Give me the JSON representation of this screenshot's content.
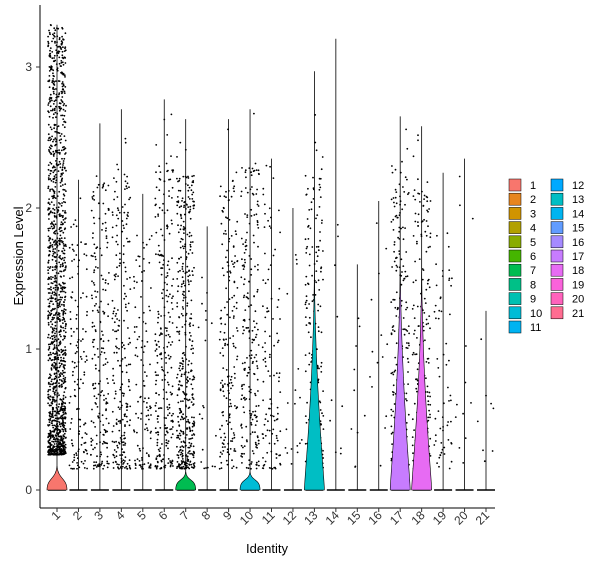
{
  "chart_data": {
    "type": "violin",
    "xlabel": "Identity",
    "ylabel": "Expression Level",
    "ylim": [
      -0.18,
      3.43
    ],
    "y_ticks": [
      0,
      1,
      2,
      3
    ],
    "grid": false,
    "legend_position": "right",
    "categories": [
      "1",
      "2",
      "3",
      "4",
      "5",
      "6",
      "7",
      "8",
      "9",
      "10",
      "11",
      "12",
      "13",
      "14",
      "15",
      "16",
      "17",
      "18",
      "19",
      "20",
      "21"
    ],
    "colors": [
      "#F8766D",
      "#E7851E",
      "#D09400",
      "#B2A100",
      "#89AC00",
      "#45B500",
      "#00BC51",
      "#00C087",
      "#00C0B2",
      "#00BCD6",
      "#00B3F2",
      "#00A9FF",
      "#00BEC4",
      "#00B4F0",
      "#619CFF",
      "#A58AFF",
      "#C77CFF",
      "#E76BF3",
      "#FA62DB",
      "#FF62BC",
      "#FF6C91"
    ],
    "legend_labels": [
      "1",
      "2",
      "3",
      "4",
      "5",
      "6",
      "7",
      "8",
      "9",
      "10",
      "11",
      "12",
      "13",
      "14",
      "15",
      "16",
      "17",
      "18",
      "19",
      "20",
      "21"
    ],
    "max_expression": [
      3.3,
      2.2,
      2.6,
      2.7,
      2.1,
      2.77,
      2.63,
      1.87,
      2.63,
      2.7,
      2.35,
      2.0,
      2.97,
      3.2,
      1.6,
      2.05,
      2.65,
      2.58,
      2.25,
      2.35,
      1.27
    ],
    "violin_fill_height": [
      0.17,
      0.0,
      0.0,
      0.0,
      0.0,
      0.0,
      0.13,
      0.0,
      0.0,
      0.13,
      0.0,
      0.0,
      1.55,
      0.0,
      0.0,
      0.0,
      1.6,
      1.55,
      0.0,
      0.0,
      0.0
    ],
    "point_counts": [
      1400,
      130,
      200,
      230,
      110,
      260,
      420,
      20,
      180,
      220,
      110,
      18,
      190,
      10,
      10,
      14,
      230,
      190,
      60,
      12,
      8
    ]
  }
}
